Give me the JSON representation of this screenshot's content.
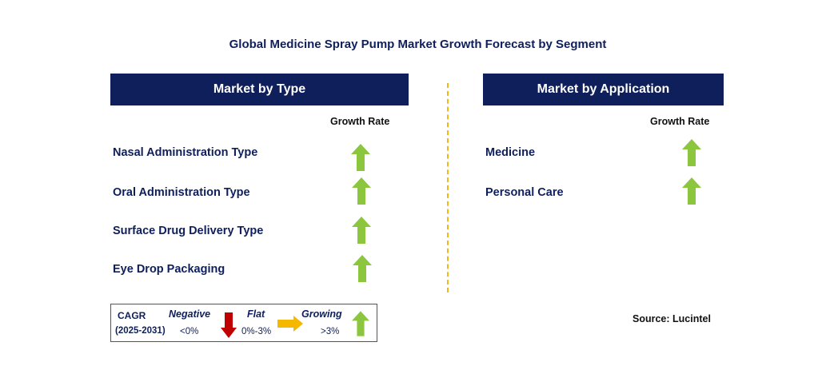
{
  "title": "Global Medicine Spray Pump Market Growth Forecast by Segment",
  "type_panel": {
    "header": "Market by Type",
    "growth_rate_label": "Growth Rate",
    "items": [
      {
        "label": "Nasal Administration Type",
        "trend": "growing"
      },
      {
        "label": "Oral Administration Type",
        "trend": "growing"
      },
      {
        "label": "Surface Drug Delivery Type",
        "trend": "growing"
      },
      {
        "label": "Eye Drop Packaging",
        "trend": "growing"
      }
    ]
  },
  "application_panel": {
    "header": "Market by Application",
    "growth_rate_label": "Growth Rate",
    "items": [
      {
        "label": "Medicine",
        "trend": "growing"
      },
      {
        "label": "Personal Care",
        "trend": "growing"
      }
    ]
  },
  "legend": {
    "cagr_label": "CAGR",
    "period": "(2025-2031)",
    "negative": {
      "label": "Negative",
      "value": "<0%",
      "icon": "red-down-arrow-icon"
    },
    "flat": {
      "label": "Flat",
      "value": "0%-3%",
      "icon": "yellow-right-arrow-icon"
    },
    "growing": {
      "label": "Growing",
      "value": ">3%",
      "icon": "green-up-arrow-icon"
    }
  },
  "source": "Source: Lucintel",
  "colors": {
    "navy": "#0e1f5b",
    "green_arrow": "#8cc63f",
    "red_arrow": "#c00000",
    "yellow_arrow": "#f5b800",
    "divider": "#f2b71a"
  }
}
